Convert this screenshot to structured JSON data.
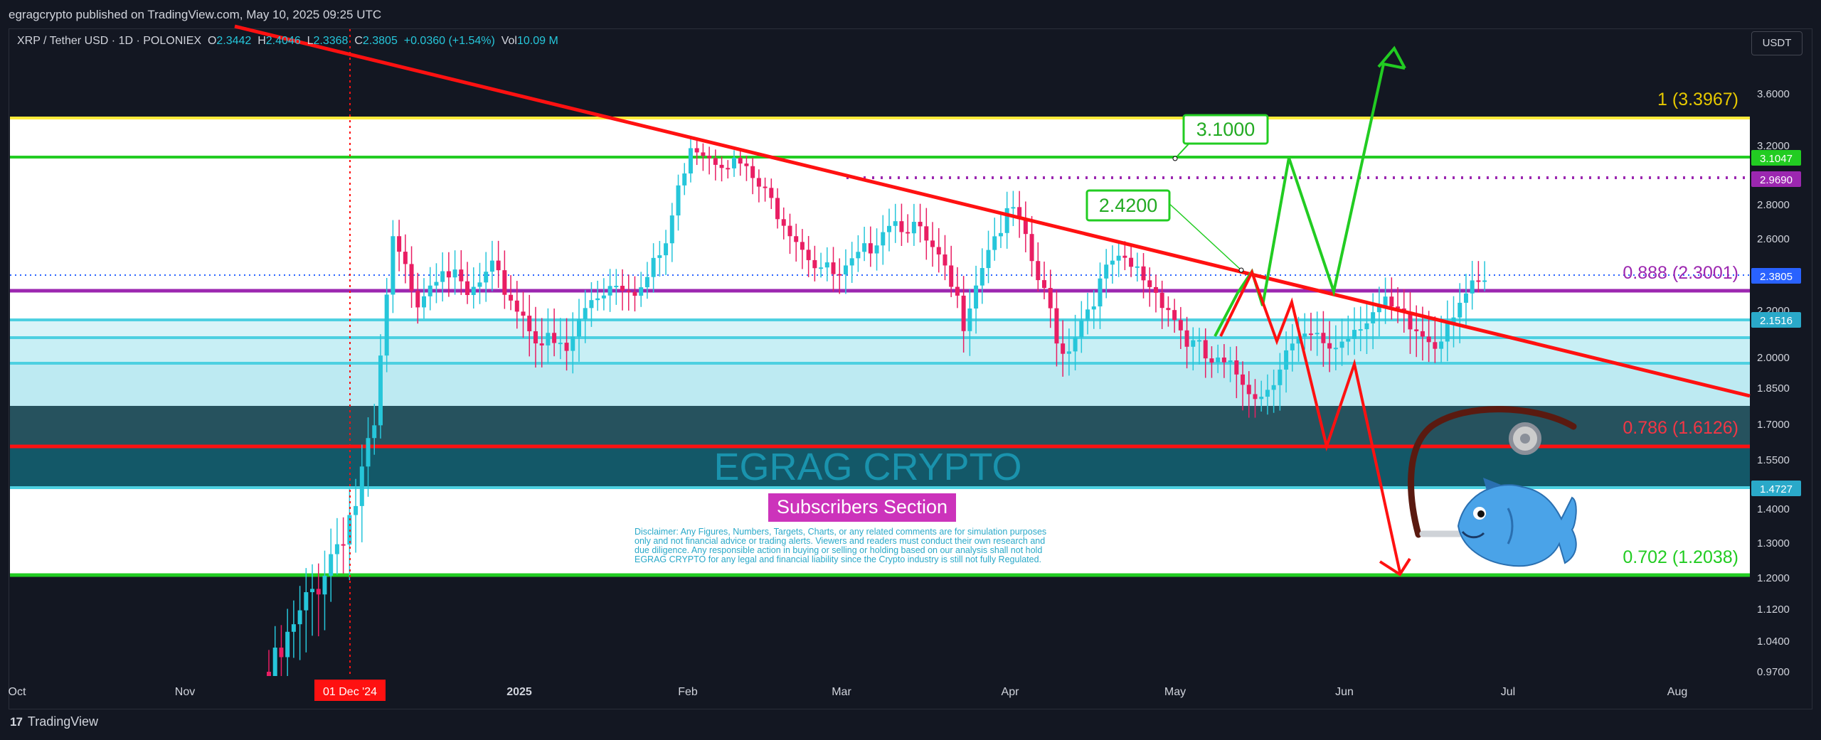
{
  "header": {
    "published": "egragcrypto published on TradingView.com, May 10, 2025 09:25 UTC"
  },
  "legend": {
    "symbol": "XRP / Tether USD · 1D · POLONIEX",
    "o_label": "O",
    "o_value": "2.3442",
    "h_label": "H",
    "h_value": "2.4046",
    "l_label": "L",
    "l_value": "2.3368",
    "c_label": "C",
    "c_value": "2.3805",
    "change": "+0.0360 (+1.54%)",
    "vol_label": "Vol",
    "vol_value": "10.09 M"
  },
  "currency_button": "USDT",
  "brand": {
    "name": "TradingView"
  },
  "chart_data": {
    "type": "candlestick",
    "title": "",
    "xlabel": "",
    "ylabel": "",
    "ylim": [
      0.95,
      3.8
    ],
    "y_scale": "log",
    "y_ticks": [
      "3.6000",
      "3.2000",
      "2.8000",
      "2.6000",
      "2.2000",
      "2.0000",
      "1.8500",
      "1.7000",
      "1.5500",
      "1.4000",
      "1.3000",
      "1.2000",
      "1.1200",
      "1.0400",
      "0.9700"
    ],
    "x_ticks": [
      "Oct",
      "Nov",
      "01 Dec '24",
      "2025",
      "Feb",
      "Mar",
      "Apr",
      "May",
      "Jun",
      "Jul",
      "Aug"
    ],
    "price_badges": [
      {
        "value": "3.1047",
        "color": "#22cc22"
      },
      {
        "value": "2.9690",
        "color": "#9c27b0"
      },
      {
        "value": "2.3805",
        "color": "#2962ff"
      },
      {
        "value": "2.1516",
        "color": "#2aa9c9"
      },
      {
        "value": "1.4727",
        "color": "#2aa9c9"
      }
    ],
    "fib_labels": [
      {
        "text": "1 (3.3967)",
        "price": 3.3967,
        "color": "#ffeb3b"
      },
      {
        "text": "0.888 (2.3001)",
        "price": 2.3001,
        "color": "#9c27b0"
      },
      {
        "text": "0.786 (1.6126)",
        "price": 1.6126,
        "color": "#f23645"
      },
      {
        "text": "0.702 (1.2038)",
        "price": 1.2038,
        "color": "#22cc22"
      }
    ],
    "callouts": [
      "3.1000",
      "2.4200"
    ],
    "watermark": "EGRAG CRYPTO",
    "section_label": "Subscribers Section",
    "disclaimer": [
      "Disclaimer: Any Figures, Numbers, Targets, Charts, or any related comments are for simulation purposes",
      "only and not financial advice or trading alerts. Viewers and readers must conduct their own research and",
      "due diligence. Any responsible action in buying or selling or holding based on our analysis shall not hold",
      "EGRAG CRYPTO for any legal and financial liability since the Crypto industry is still not fully Regulated."
    ],
    "colors": {
      "up": "#26c6da",
      "down": "#e91e63",
      "trend": "#ff1111",
      "green": "#22cc22",
      "yellow": "#ffeb3b",
      "purple": "#9c27b0"
    }
  }
}
